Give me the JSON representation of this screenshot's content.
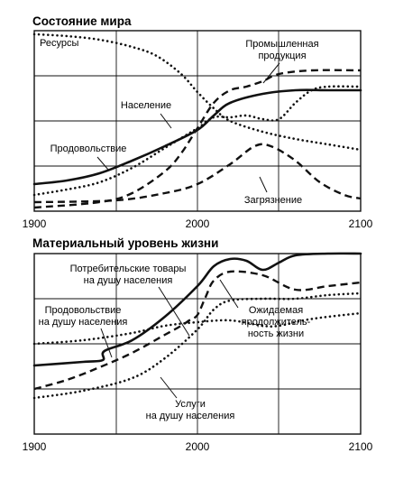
{
  "chart_data": [
    {
      "type": "line",
      "title": "Состояние мира",
      "xlim": [
        1900,
        2100
      ],
      "ylim": [
        0,
        1
      ],
      "x_ticks": [
        "1900",
        "2000",
        "2100"
      ],
      "grid": true,
      "series": [
        {
          "name": "Ресурсы",
          "style": "dotted",
          "points": [
            [
              1900,
              0.98
            ],
            [
              1920,
              0.97
            ],
            [
              1940,
              0.95
            ],
            [
              1960,
              0.91
            ],
            [
              1975,
              0.86
            ],
            [
              1990,
              0.76
            ],
            [
              2000,
              0.66
            ],
            [
              2010,
              0.57
            ],
            [
              2020,
              0.5
            ],
            [
              2040,
              0.44
            ],
            [
              2060,
              0.4
            ],
            [
              2080,
              0.37
            ],
            [
              2100,
              0.34
            ]
          ]
        },
        {
          "name": "Промышленная продукция",
          "style": "dashed",
          "points": [
            [
              1900,
              0.02
            ],
            [
              1940,
              0.05
            ],
            [
              1960,
              0.1
            ],
            [
              1980,
              0.22
            ],
            [
              1990,
              0.32
            ],
            [
              2000,
              0.46
            ],
            [
              2010,
              0.6
            ],
            [
              2020,
              0.67
            ],
            [
              2030,
              0.69
            ],
            [
              2040,
              0.72
            ],
            [
              2050,
              0.76
            ],
            [
              2070,
              0.78
            ],
            [
              2100,
              0.78
            ]
          ]
        },
        {
          "name": "Население",
          "style": "solid",
          "points": [
            [
              1900,
              0.15
            ],
            [
              1920,
              0.17
            ],
            [
              1940,
              0.21
            ],
            [
              1960,
              0.28
            ],
            [
              1980,
              0.36
            ],
            [
              2000,
              0.45
            ],
            [
              2010,
              0.53
            ],
            [
              2020,
              0.6
            ],
            [
              2040,
              0.65
            ],
            [
              2060,
              0.67
            ],
            [
              2080,
              0.67
            ],
            [
              2100,
              0.67
            ]
          ]
        },
        {
          "name": "Продовольствие",
          "style": "dotted",
          "points": [
            [
              1900,
              0.09
            ],
            [
              1920,
              0.12
            ],
            [
              1940,
              0.16
            ],
            [
              1960,
              0.24
            ],
            [
              1980,
              0.35
            ],
            [
              2000,
              0.46
            ],
            [
              2010,
              0.52
            ],
            [
              2020,
              0.52
            ],
            [
              2030,
              0.53
            ],
            [
              2040,
              0.51
            ],
            [
              2050,
              0.51
            ],
            [
              2060,
              0.6
            ],
            [
              2070,
              0.67
            ],
            [
              2080,
              0.69
            ],
            [
              2100,
              0.69
            ]
          ]
        },
        {
          "name": "Загрязнение",
          "style": "dashed",
          "points": [
            [
              1900,
              0.05
            ],
            [
              1950,
              0.06
            ],
            [
              1980,
              0.1
            ],
            [
              2000,
              0.15
            ],
            [
              2020,
              0.26
            ],
            [
              2035,
              0.36
            ],
            [
              2045,
              0.36
            ],
            [
              2060,
              0.28
            ],
            [
              2075,
              0.16
            ],
            [
              2090,
              0.09
            ],
            [
              2100,
              0.07
            ]
          ]
        }
      ]
    },
    {
      "type": "line",
      "title": "Материальный уровень жизни",
      "xlim": [
        1900,
        2100
      ],
      "ylim": [
        0,
        1
      ],
      "x_ticks": [
        "1900",
        "2000",
        "2100"
      ],
      "grid": true,
      "series": [
        {
          "name": "Потребительские товары на душу населения",
          "style": "solid",
          "points": [
            [
              1900,
              0.38
            ],
            [
              1930,
              0.4
            ],
            [
              1942,
              0.41
            ],
            [
              1943,
              0.46
            ],
            [
              1960,
              0.52
            ],
            [
              1980,
              0.65
            ],
            [
              2000,
              0.82
            ],
            [
              2010,
              0.93
            ],
            [
              2020,
              0.97
            ],
            [
              2030,
              0.96
            ],
            [
              2040,
              0.91
            ],
            [
              2050,
              0.95
            ],
            [
              2060,
              0.99
            ],
            [
              2080,
              1.0
            ],
            [
              2100,
              1.0
            ]
          ]
        },
        {
          "name": "Продовольствие на душу населения",
          "style": "dashed",
          "points": [
            [
              1900,
              0.25
            ],
            [
              1920,
              0.3
            ],
            [
              1940,
              0.37
            ],
            [
              1960,
              0.45
            ],
            [
              1980,
              0.55
            ],
            [
              1990,
              0.6
            ],
            [
              1995,
              0.63
            ],
            [
              2000,
              0.66
            ],
            [
              2005,
              0.76
            ],
            [
              2010,
              0.85
            ],
            [
              2020,
              0.9
            ],
            [
              2040,
              0.88
            ],
            [
              2060,
              0.8
            ],
            [
              2080,
              0.82
            ],
            [
              2100,
              0.84
            ]
          ]
        },
        {
          "name": "Ожидаемая продолжитель-ность жизни",
          "style": "dotted",
          "points": [
            [
              1900,
              0.5
            ],
            [
              1930,
              0.52
            ],
            [
              1960,
              0.56
            ],
            [
              1980,
              0.6
            ],
            [
              2000,
              0.62
            ],
            [
              2020,
              0.63
            ],
            [
              2040,
              0.6
            ],
            [
              2050,
              0.6
            ],
            [
              2065,
              0.63
            ],
            [
              2080,
              0.65
            ],
            [
              2100,
              0.67
            ]
          ]
        },
        {
          "name": "Услуги на душу населения",
          "style": "dotted",
          "points": [
            [
              1900,
              0.2
            ],
            [
              1930,
              0.24
            ],
            [
              1960,
              0.31
            ],
            [
              1980,
              0.42
            ],
            [
              2000,
              0.58
            ],
            [
              2010,
              0.69
            ],
            [
              2020,
              0.74
            ],
            [
              2040,
              0.75
            ],
            [
              2060,
              0.75
            ],
            [
              2080,
              0.77
            ],
            [
              2100,
              0.78
            ]
          ]
        }
      ]
    }
  ]
}
